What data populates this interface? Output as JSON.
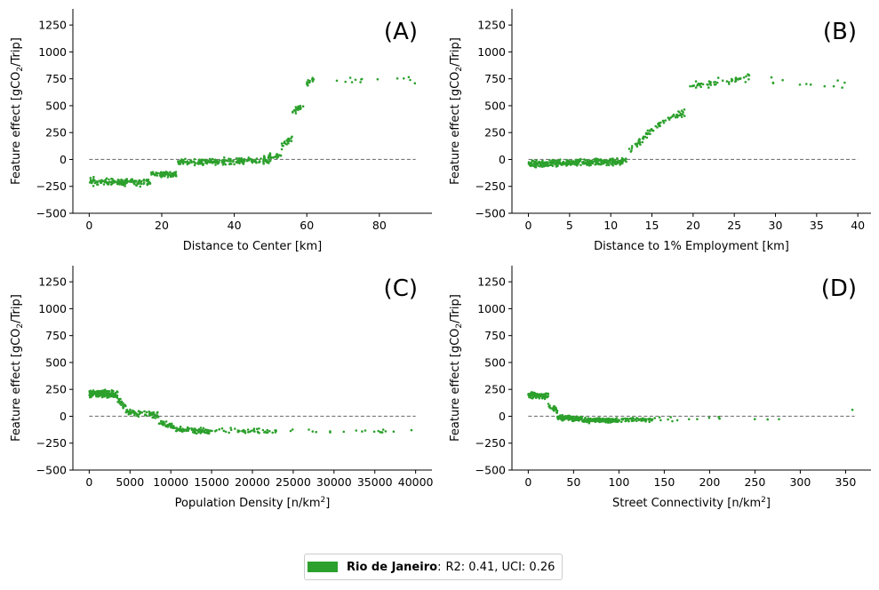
{
  "colors": {
    "series": "#2ca02c",
    "zero_line": "#777777"
  },
  "legend": {
    "name": "Rio de Janeiro",
    "separator": ":",
    "stats": "R2: 0.41, UCI: 0.26"
  },
  "chart_data": [
    {
      "type": "scatter",
      "panel": "(A)",
      "xlabel": "Distance to Center [km]",
      "ylabel_main": "Feature effect [gCO",
      "ylabel_sub": "2",
      "ylabel_tail": "/Trip]",
      "xlim": [
        -4.5,
        94.5
      ],
      "ylim": [
        -500,
        1400
      ],
      "xticks": [
        0,
        20,
        40,
        60,
        80
      ],
      "yticks": [
        -500,
        -250,
        0,
        250,
        500,
        750,
        1000,
        1250
      ],
      "zero_line": {
        "x_from": 0,
        "x_to": 90,
        "y": 0
      },
      "seed": 11,
      "segments": [
        {
          "x": [
            0,
            17
          ],
          "n": 130,
          "y0": -205,
          "y1": -215,
          "jit": 30
        },
        {
          "x": [
            17,
            24
          ],
          "n": 70,
          "y0": -140,
          "y1": -140,
          "jit": 28
        },
        {
          "x": [
            24,
            50
          ],
          "n": 190,
          "y0": -25,
          "y1": -10,
          "jit": 28
        },
        {
          "x": [
            48,
            53
          ],
          "n": 25,
          "y0": 20,
          "y1": 40,
          "jit": 35
        },
        {
          "x": [
            53,
            56
          ],
          "n": 22,
          "y0": 120,
          "y1": 200,
          "jit": 35
        },
        {
          "x": [
            56,
            59
          ],
          "n": 22,
          "y0": 440,
          "y1": 510,
          "jit": 30
        },
        {
          "x": [
            60,
            62
          ],
          "n": 14,
          "y0": 700,
          "y1": 750,
          "jit": 30
        },
        {
          "x": [
            66,
            90
          ],
          "n": 14,
          "y0": 720,
          "y1": 740,
          "jit": 35
        }
      ]
    },
    {
      "type": "scatter",
      "panel": "(B)",
      "xlabel": "Distance to 1% Employment [km]",
      "ylabel_main": "Feature effect [gCO",
      "ylabel_sub": "2",
      "ylabel_tail": "/Trip]",
      "xlim": [
        -2.0,
        41.6
      ],
      "ylim": [
        -500,
        1400
      ],
      "xticks": [
        0,
        5,
        10,
        15,
        20,
        25,
        30,
        35,
        40
      ],
      "yticks": [
        -500,
        -250,
        0,
        250,
        500,
        750,
        1000,
        1250
      ],
      "zero_line": {
        "x_from": 0,
        "x_to": 40,
        "y": 0
      },
      "seed": 23,
      "segments": [
        {
          "x": [
            0,
            11.5
          ],
          "n": 320,
          "y0": -40,
          "y1": -20,
          "jit": 30
        },
        {
          "x": [
            11,
            12
          ],
          "n": 18,
          "y0": -20,
          "y1": 0,
          "jit": 30
        },
        {
          "x": [
            12,
            14
          ],
          "n": 25,
          "y0": 80,
          "y1": 200,
          "jit": 30
        },
        {
          "x": [
            14,
            17
          ],
          "n": 30,
          "y0": 220,
          "y1": 380,
          "jit": 35
        },
        {
          "x": [
            17,
            19
          ],
          "n": 25,
          "y0": 380,
          "y1": 440,
          "jit": 30
        },
        {
          "x": [
            19.5,
            27
          ],
          "n": 55,
          "y0": 680,
          "y1": 760,
          "jit": 35
        },
        {
          "x": [
            27,
            39.5
          ],
          "n": 12,
          "y0": 740,
          "y1": 690,
          "jit": 45
        }
      ]
    },
    {
      "type": "scatter",
      "panel": "(C)",
      "xlabel_main": "Population Density [n/km",
      "xlabel_sup": "2",
      "xlabel_tail": "]",
      "ylabel_main": "Feature effect [gCO",
      "ylabel_sub": "2",
      "ylabel_tail": "/Trip]",
      "xlim": [
        -2000,
        42000
      ],
      "ylim": [
        -500,
        1400
      ],
      "xticks": [
        0,
        5000,
        10000,
        15000,
        20000,
        25000,
        30000,
        35000,
        40000
      ],
      "yticks": [
        -500,
        -250,
        0,
        250,
        500,
        750,
        1000,
        1250
      ],
      "zero_line": {
        "x_from": 0,
        "x_to": 40000,
        "y": 0
      },
      "seed": 37,
      "segments": [
        {
          "x": [
            0,
            3500
          ],
          "n": 170,
          "y0": 210,
          "y1": 200,
          "jit": 30
        },
        {
          "x": [
            3500,
            4500
          ],
          "n": 20,
          "y0": 150,
          "y1": 80,
          "jit": 35
        },
        {
          "x": [
            4500,
            8500
          ],
          "n": 70,
          "y0": 40,
          "y1": 10,
          "jit": 28
        },
        {
          "x": [
            8500,
            10500
          ],
          "n": 40,
          "y0": -60,
          "y1": -90,
          "jit": 28
        },
        {
          "x": [
            10500,
            15000
          ],
          "n": 75,
          "y0": -120,
          "y1": -135,
          "jit": 28
        },
        {
          "x": [
            15000,
            23000
          ],
          "n": 45,
          "y0": -130,
          "y1": -140,
          "jit": 22
        },
        {
          "x": [
            23000,
            40000
          ],
          "n": 20,
          "y0": -130,
          "y1": -145,
          "jit": 20
        }
      ]
    },
    {
      "type": "scatter",
      "panel": "(D)",
      "xlabel_main": "Street Connectivity [n/km",
      "xlabel_sup": "2",
      "xlabel_tail": "]",
      "ylabel_main": "Feature effect [gCO",
      "ylabel_sub": "2",
      "ylabel_tail": "/Trip]",
      "xlim": [
        -18,
        378
      ],
      "ylim": [
        -500,
        1400
      ],
      "xticks": [
        0,
        50,
        100,
        150,
        200,
        250,
        300,
        350
      ],
      "yticks": [
        -500,
        -250,
        0,
        250,
        500,
        750,
        1000,
        1250
      ],
      "zero_line": {
        "x_from": 0,
        "x_to": 360,
        "y": 0
      },
      "seed": 53,
      "segments": [
        {
          "x": [
            0,
            22
          ],
          "n": 90,
          "y0": 200,
          "y1": 190,
          "jit": 30
        },
        {
          "x": [
            22,
            32
          ],
          "n": 25,
          "y0": 100,
          "y1": 50,
          "jit": 30
        },
        {
          "x": [
            32,
            60
          ],
          "n": 120,
          "y0": -10,
          "y1": -25,
          "jit": 22
        },
        {
          "x": [
            60,
            100
          ],
          "n": 170,
          "y0": -35,
          "y1": -40,
          "jit": 20
        },
        {
          "x": [
            100,
            140
          ],
          "n": 50,
          "y0": -35,
          "y1": -30,
          "jit": 20
        },
        {
          "x": [
            140,
            220
          ],
          "n": 12,
          "y0": -20,
          "y1": -20,
          "jit": 25
        },
        {
          "x": [
            220,
            300
          ],
          "n": 3,
          "y0": -30,
          "y1": -40,
          "jit": 30
        },
        {
          "x": [
            355,
            360
          ],
          "n": 1,
          "y0": 60,
          "y1": 60,
          "jit": 0
        }
      ]
    }
  ]
}
